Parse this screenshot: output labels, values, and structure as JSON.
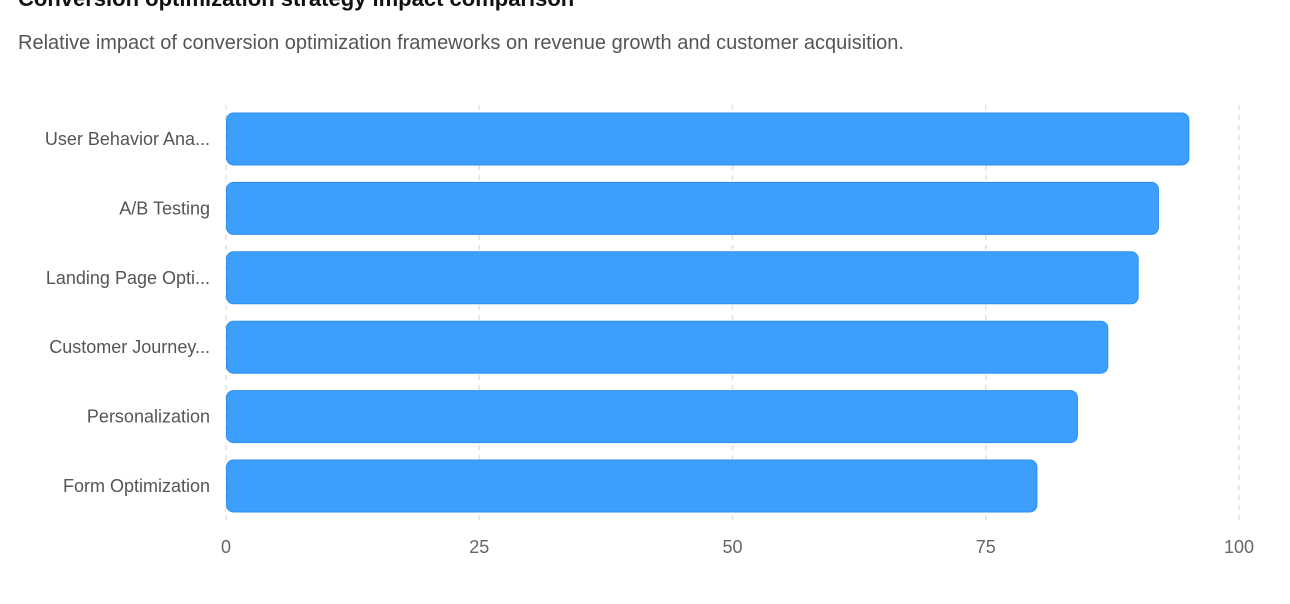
{
  "header": {
    "title": "Conversion optimization strategy impact comparison",
    "subtitle": "Relative impact of conversion optimization frameworks on revenue growth and customer acquisition."
  },
  "chart_data": {
    "type": "bar",
    "orientation": "horizontal",
    "title": "Conversion optimization strategy impact comparison",
    "subtitle": "Relative impact of conversion optimization frameworks on revenue growth and customer acquisition.",
    "categories": [
      "User Behavior Ana...",
      "A/B Testing",
      "Landing Page Opti...",
      "Customer Journey...",
      "Personalization",
      "Form Optimization"
    ],
    "values": [
      95,
      92,
      90,
      87,
      84,
      80
    ],
    "xlabel": "",
    "ylabel": "",
    "xlim": [
      0,
      100
    ],
    "x_ticks": [
      0,
      25,
      50,
      75,
      100
    ],
    "grid": "vertical-dashed",
    "legend": "none",
    "bar_color": "#3d9ffd",
    "bar_stroke": "#2f8ff0",
    "grid_color": "#e2e2e2"
  }
}
